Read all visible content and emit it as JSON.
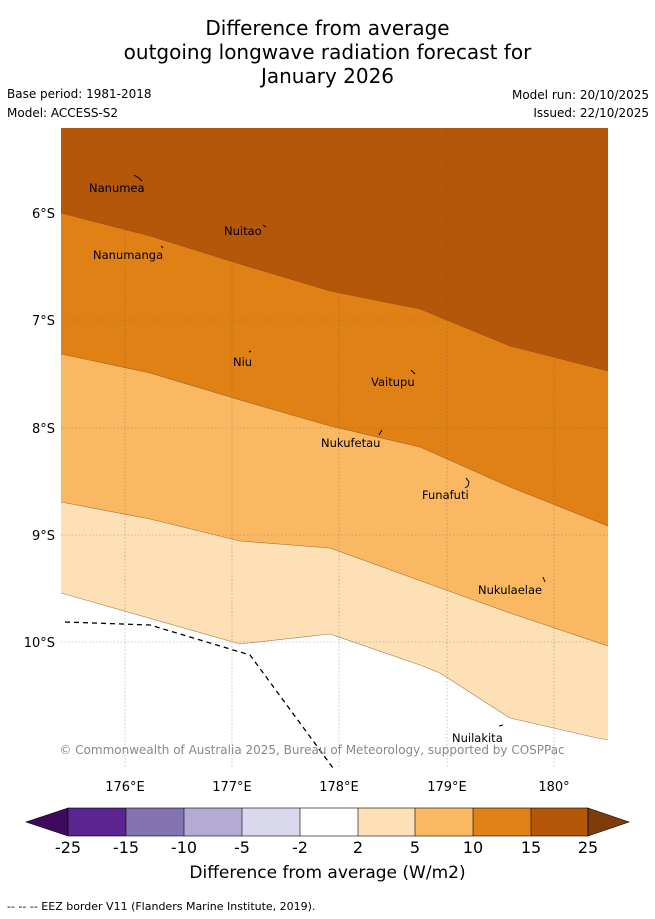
{
  "title": {
    "line1": "Difference from average",
    "line2": "outgoing longwave radiation forecast for",
    "line3": "January 2026"
  },
  "meta": {
    "base_period": "Base period: 1981-2018",
    "model": "Model: ACCESS-S2",
    "model_run": "Model run: 20/10/2025",
    "issued": "Issued: 22/10/2025"
  },
  "map": {
    "lat_labels": [
      "6°S",
      "7°S",
      "8°S",
      "9°S",
      "10°S"
    ],
    "lon_labels": [
      "176°E",
      "177°E",
      "178°E",
      "179°E",
      "180°"
    ],
    "places": [
      "Nanumea",
      "Nuitao",
      "Nanumanga",
      "Niu",
      "Vaitupu",
      "Nukufetau",
      "Funafuti",
      "Nukulaelae",
      "Nuilakita"
    ],
    "copyright": "© Commonwealth of Australia 2025, Bureau of Meteorology, supported by COSPPac"
  },
  "colorbar": {
    "title": "Difference from average (W/m2)",
    "ticks": [
      "-25",
      "-15",
      "-10",
      "-5",
      "-2",
      "2",
      "5",
      "10",
      "15",
      "25"
    ],
    "colors": {
      "lt_minus25": "#3f0a5e",
      "b1": "#5a2590",
      "b2": "#8473b1",
      "b3": "#b3abd3",
      "b4": "#d9d8ec",
      "b5": "#ffffff",
      "b6": "#fde0b5",
      "b7": "#fbb862",
      "b8": "#e08116",
      "b9": "#b45709",
      "gt_25": "#7e3c0a"
    }
  },
  "legend": {
    "eez": "-- -- -- EEZ border V11 (Flanders Marine Institute, 2019)."
  }
}
